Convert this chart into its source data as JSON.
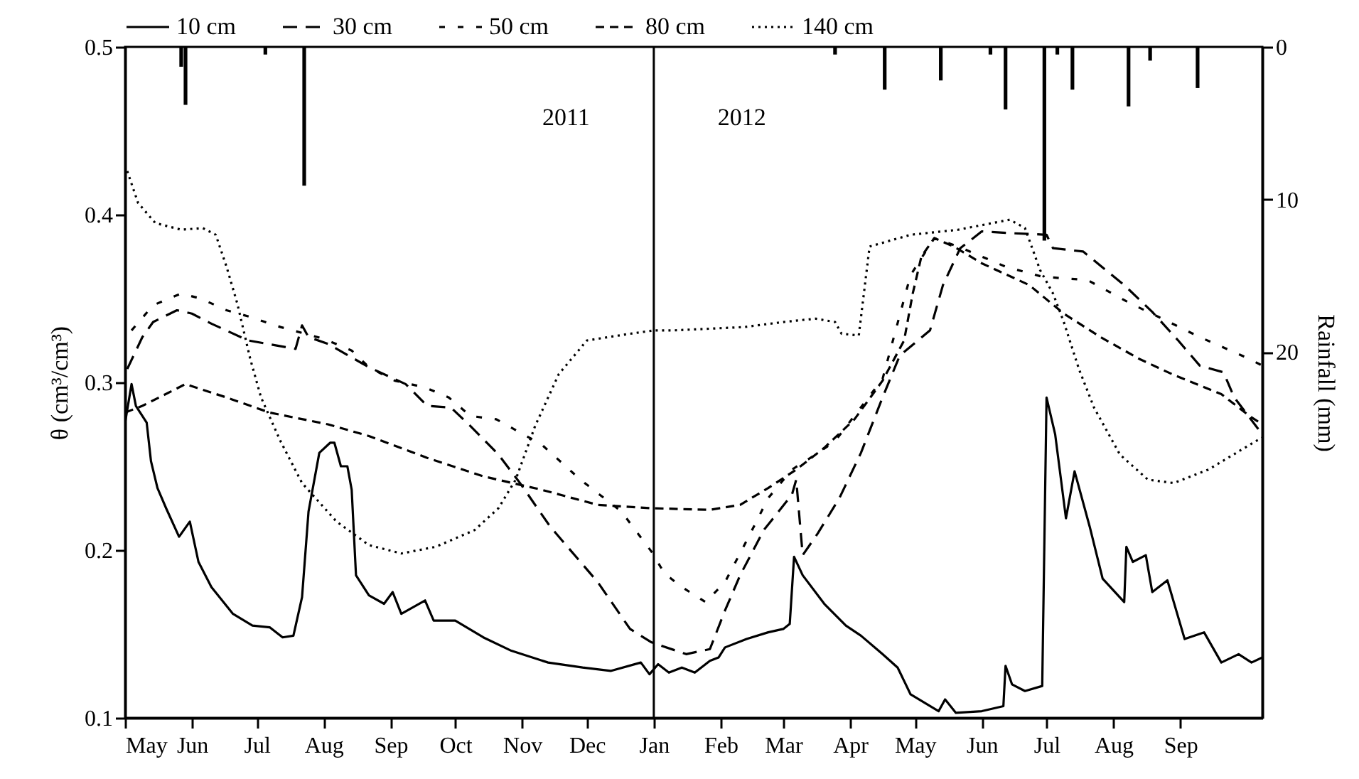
{
  "chart_data": {
    "type": "line",
    "ylabel": "θ (cm³/cm³)",
    "y2label": "Rainfall (mm)",
    "legend": "top",
    "xlim": [
      "2011-05-01",
      "2012-10-09"
    ],
    "xticks": [
      {
        "value": "2011-05-01",
        "label": "May"
      },
      {
        "value": "2011-06-01",
        "label": "Jun"
      },
      {
        "value": "2011-07-01",
        "label": "Jul"
      },
      {
        "value": "2011-08-01",
        "label": "Aug"
      },
      {
        "value": "2011-09-01",
        "label": "Sep"
      },
      {
        "value": "2011-10-01",
        "label": "Oct"
      },
      {
        "value": "2011-11-01",
        "label": "Nov"
      },
      {
        "value": "2011-12-01",
        "label": "Dec"
      },
      {
        "value": "2012-01-01",
        "label": "Jan"
      },
      {
        "value": "2012-02-01",
        "label": "Feb"
      },
      {
        "value": "2012-03-01",
        "label": "Mar"
      },
      {
        "value": "2012-04-01",
        "label": "Apr"
      },
      {
        "value": "2012-05-01",
        "label": "May"
      },
      {
        "value": "2012-06-01",
        "label": "Jun"
      },
      {
        "value": "2012-07-01",
        "label": "Jul"
      },
      {
        "value": "2012-08-01",
        "label": "Aug"
      },
      {
        "value": "2012-09-01",
        "label": "Sep"
      }
    ],
    "ylim": [
      0.1,
      0.5
    ],
    "yticks": [
      0.1,
      0.2,
      0.3,
      0.4,
      0.5
    ],
    "y2lim": [
      44,
      0
    ],
    "y2ticks": [
      0,
      10,
      20
    ],
    "ref_lines": [
      {
        "axis": "x",
        "value": "2012-01-01"
      }
    ],
    "annotations": [
      "2011",
      "2012"
    ],
    "series": [
      {
        "name": "10 cm",
        "color": "#000000",
        "line_style": "solid",
        "x": [
          "2011-05-01",
          "2011-05-04",
          "2011-05-06",
          "2011-05-11",
          "2011-05-13",
          "2011-05-16",
          "2011-05-20",
          "2011-05-26",
          "2011-05-31",
          "2011-06-04",
          "2011-06-10",
          "2011-06-20",
          "2011-06-29",
          "2011-07-07",
          "2011-07-13",
          "2011-07-18",
          "2011-07-22",
          "2011-07-25",
          "2011-07-30",
          "2011-08-04",
          "2011-08-06",
          "2011-08-09",
          "2011-08-12",
          "2011-08-14",
          "2011-08-16",
          "2011-08-22",
          "2011-08-29",
          "2011-09-02",
          "2011-09-06",
          "2011-09-17",
          "2011-09-21",
          "2011-10-01",
          "2011-10-14",
          "2011-10-27",
          "2011-11-13",
          "2011-11-29",
          "2011-12-12",
          "2011-12-26",
          "2011-12-30",
          "2012-01-03",
          "2012-01-08",
          "2012-01-14",
          "2012-01-20",
          "2012-01-27",
          "2012-01-31",
          "2012-02-03",
          "2012-02-13",
          "2012-02-23",
          "2012-03-01",
          "2012-03-04",
          "2012-03-06",
          "2012-03-10",
          "2012-03-20",
          "2012-03-30",
          "2012-04-06",
          "2012-04-16",
          "2012-04-23",
          "2012-04-29",
          "2012-05-12",
          "2012-05-15",
          "2012-05-20",
          "2012-06-01",
          "2012-06-11",
          "2012-06-12",
          "2012-06-15",
          "2012-06-21",
          "2012-06-29",
          "2012-07-01",
          "2012-07-05",
          "2012-07-10",
          "2012-07-14",
          "2012-07-21",
          "2012-07-27",
          "2012-08-06",
          "2012-08-07",
          "2012-08-10",
          "2012-08-16",
          "2012-08-19",
          "2012-08-26",
          "2012-09-03",
          "2012-09-12",
          "2012-09-20",
          "2012-09-28",
          "2012-10-04",
          "2012-10-09"
        ],
        "values": [
          0.276,
          0.299,
          0.286,
          0.276,
          0.253,
          0.237,
          0.225,
          0.208,
          0.217,
          0.193,
          0.178,
          0.162,
          0.155,
          0.154,
          0.148,
          0.149,
          0.172,
          0.223,
          0.258,
          0.264,
          0.264,
          0.25,
          0.25,
          0.236,
          0.185,
          0.173,
          0.168,
          0.175,
          0.162,
          0.17,
          0.158,
          0.158,
          0.148,
          0.14,
          0.133,
          0.13,
          0.128,
          0.133,
          0.126,
          0.132,
          0.127,
          0.13,
          0.127,
          0.134,
          0.136,
          0.142,
          0.147,
          0.151,
          0.153,
          0.156,
          0.196,
          0.185,
          0.168,
          0.155,
          0.149,
          0.138,
          0.13,
          0.114,
          0.104,
          0.111,
          0.103,
          0.104,
          0.107,
          0.131,
          0.12,
          0.116,
          0.119,
          0.291,
          0.269,
          0.219,
          0.247,
          0.214,
          0.183,
          0.169,
          0.202,
          0.193,
          0.197,
          0.175,
          0.182,
          0.147,
          0.151,
          0.133,
          0.138,
          0.133,
          0.136
        ]
      },
      {
        "name": "30 cm",
        "color": "#000000",
        "line_style": "dashed",
        "x": [
          "2011-05-02",
          "2011-05-09",
          "2011-05-14",
          "2011-05-25",
          "2011-06-01",
          "2011-06-10",
          "2011-06-27",
          "2011-07-19",
          "2011-07-22",
          "2011-07-25",
          "2011-08-03",
          "2011-08-22",
          "2011-09-08",
          "2011-09-18",
          "2011-09-29",
          "2011-10-08",
          "2011-10-21",
          "2011-10-31",
          "2011-11-14",
          "2011-12-06",
          "2011-12-21",
          "2011-12-31",
          "2012-01-16",
          "2012-01-27",
          "2012-02-03",
          "2012-02-10",
          "2012-02-21",
          "2012-03-05",
          "2012-03-07",
          "2012-03-10",
          "2012-03-17",
          "2012-03-27",
          "2012-04-06",
          "2012-04-16",
          "2012-04-24",
          "2012-05-08",
          "2012-05-14",
          "2012-05-22",
          "2012-06-01",
          "2012-06-14",
          "2012-07-01",
          "2012-07-04",
          "2012-07-18",
          "2012-08-06",
          "2012-08-19",
          "2012-08-31",
          "2012-09-10",
          "2012-09-21",
          "2012-09-26",
          "2012-10-09"
        ],
        "values": [
          0.308,
          0.327,
          0.336,
          0.343,
          0.341,
          0.335,
          0.325,
          0.32,
          0.334,
          0.327,
          0.323,
          0.309,
          0.299,
          0.286,
          0.285,
          0.274,
          0.257,
          0.24,
          0.214,
          0.181,
          0.153,
          0.145,
          0.138,
          0.141,
          0.164,
          0.185,
          0.212,
          0.233,
          0.242,
          0.197,
          0.21,
          0.231,
          0.258,
          0.291,
          0.316,
          0.331,
          0.358,
          0.38,
          0.39,
          0.389,
          0.388,
          0.38,
          0.378,
          0.358,
          0.342,
          0.325,
          0.31,
          0.306,
          0.291,
          0.269
        ]
      },
      {
        "name": "50 cm",
        "color": "#000000",
        "line_style": "dashed",
        "x": [
          "2011-05-04",
          "2011-05-14",
          "2011-05-27",
          "2011-06-05",
          "2011-06-17",
          "2011-06-28",
          "2011-07-12",
          "2011-08-01",
          "2011-08-14",
          "2011-08-22",
          "2011-09-03",
          "2011-09-17",
          "2011-09-28",
          "2011-10-08",
          "2011-10-20",
          "2011-11-10",
          "2011-11-28",
          "2011-12-17",
          "2011-12-31",
          "2012-01-06",
          "2012-01-14",
          "2012-01-25",
          "2012-02-03",
          "2012-02-14",
          "2012-02-23",
          "2012-03-05",
          "2012-03-16",
          "2012-03-25",
          "2012-04-16",
          "2012-04-29",
          "2012-05-10",
          "2012-05-21",
          "2012-06-12",
          "2012-06-29",
          "2012-07-20",
          "2012-08-09",
          "2012-08-22",
          "2012-09-10",
          "2012-10-03",
          "2012-10-09"
        ],
        "values": [
          0.331,
          0.346,
          0.353,
          0.35,
          0.343,
          0.339,
          0.333,
          0.326,
          0.319,
          0.309,
          0.301,
          0.297,
          0.291,
          0.28,
          0.278,
          0.263,
          0.242,
          0.223,
          0.199,
          0.186,
          0.178,
          0.169,
          0.181,
          0.208,
          0.231,
          0.248,
          0.257,
          0.265,
          0.302,
          0.364,
          0.386,
          0.381,
          0.369,
          0.363,
          0.361,
          0.347,
          0.339,
          0.327,
          0.314,
          0.31
        ]
      },
      {
        "name": "80 cm",
        "color": "#000000",
        "line_style": "dashed",
        "x": [
          "2011-05-01",
          "2011-05-09",
          "2011-05-29",
          "2011-06-17",
          "2011-07-07",
          "2011-08-03",
          "2011-08-22",
          "2011-09-18",
          "2011-10-14",
          "2011-11-10",
          "2011-12-06",
          "2011-12-31",
          "2012-01-27",
          "2012-02-10",
          "2012-02-23",
          "2012-03-07",
          "2012-03-20",
          "2012-04-03",
          "2012-04-16",
          "2012-04-26",
          "2012-04-30",
          "2012-05-04",
          "2012-05-10",
          "2012-05-19",
          "2012-06-01",
          "2012-06-23",
          "2012-07-09",
          "2012-07-26",
          "2012-08-13",
          "2012-08-28",
          "2012-09-20",
          "2012-10-03",
          "2012-10-09"
        ],
        "values": [
          0.282,
          0.286,
          0.299,
          0.291,
          0.282,
          0.275,
          0.268,
          0.255,
          0.244,
          0.236,
          0.227,
          0.225,
          0.224,
          0.227,
          0.237,
          0.248,
          0.261,
          0.278,
          0.301,
          0.325,
          0.353,
          0.375,
          0.386,
          0.381,
          0.371,
          0.358,
          0.341,
          0.327,
          0.314,
          0.305,
          0.293,
          0.28,
          0.275
        ]
      },
      {
        "name": "140 cm",
        "color": "#000000",
        "line_style": "dotted",
        "x": [
          "2011-05-02",
          "2011-05-07",
          "2011-05-15",
          "2011-05-27",
          "2011-06-06",
          "2011-06-12",
          "2011-06-17",
          "2011-06-22",
          "2011-06-28",
          "2011-07-03",
          "2011-07-12",
          "2011-07-22",
          "2011-08-07",
          "2011-08-22",
          "2011-09-06",
          "2011-09-22",
          "2011-10-10",
          "2011-10-21",
          "2011-10-29",
          "2011-11-07",
          "2011-11-18",
          "2011-12-01",
          "2011-12-21",
          "2012-01-01",
          "2012-01-10",
          "2012-02-12",
          "2012-03-01",
          "2012-03-16",
          "2012-03-25",
          "2012-03-28",
          "2012-04-05",
          "2012-04-10",
          "2012-04-29",
          "2012-05-21",
          "2012-06-14",
          "2012-06-21",
          "2012-06-28",
          "2012-07-04",
          "2012-07-09",
          "2012-07-16",
          "2012-07-23",
          "2012-08-04",
          "2012-08-17",
          "2012-08-29",
          "2012-09-14",
          "2012-10-06",
          "2012-10-09"
        ],
        "values": [
          0.426,
          0.407,
          0.395,
          0.391,
          0.392,
          0.388,
          0.369,
          0.347,
          0.314,
          0.291,
          0.265,
          0.24,
          0.217,
          0.203,
          0.198,
          0.202,
          0.212,
          0.225,
          0.242,
          0.274,
          0.305,
          0.325,
          0.329,
          0.331,
          0.331,
          0.333,
          0.336,
          0.338,
          0.336,
          0.329,
          0.328,
          0.381,
          0.388,
          0.391,
          0.397,
          0.392,
          0.367,
          0.353,
          0.336,
          0.308,
          0.285,
          0.257,
          0.242,
          0.24,
          0.248,
          0.265,
          0.267
        ]
      },
      {
        "type": "bar",
        "axis": "y2",
        "color": "#000000",
        "x": [
          "2011-05-27",
          "2011-05-29",
          "2011-07-05",
          "2011-07-23",
          "2012-03-25",
          "2012-04-17",
          "2012-05-13",
          "2012-06-05",
          "2012-06-12",
          "2012-06-30",
          "2012-07-06",
          "2012-07-13",
          "2012-08-08",
          "2012-08-18",
          "2012-09-09"
        ],
        "values": [
          1.3,
          3.8,
          0.5,
          9.1,
          0.5,
          2.8,
          2.2,
          0.5,
          4.1,
          12.7,
          0.5,
          2.8,
          3.9,
          0.9,
          2.7
        ]
      }
    ]
  }
}
